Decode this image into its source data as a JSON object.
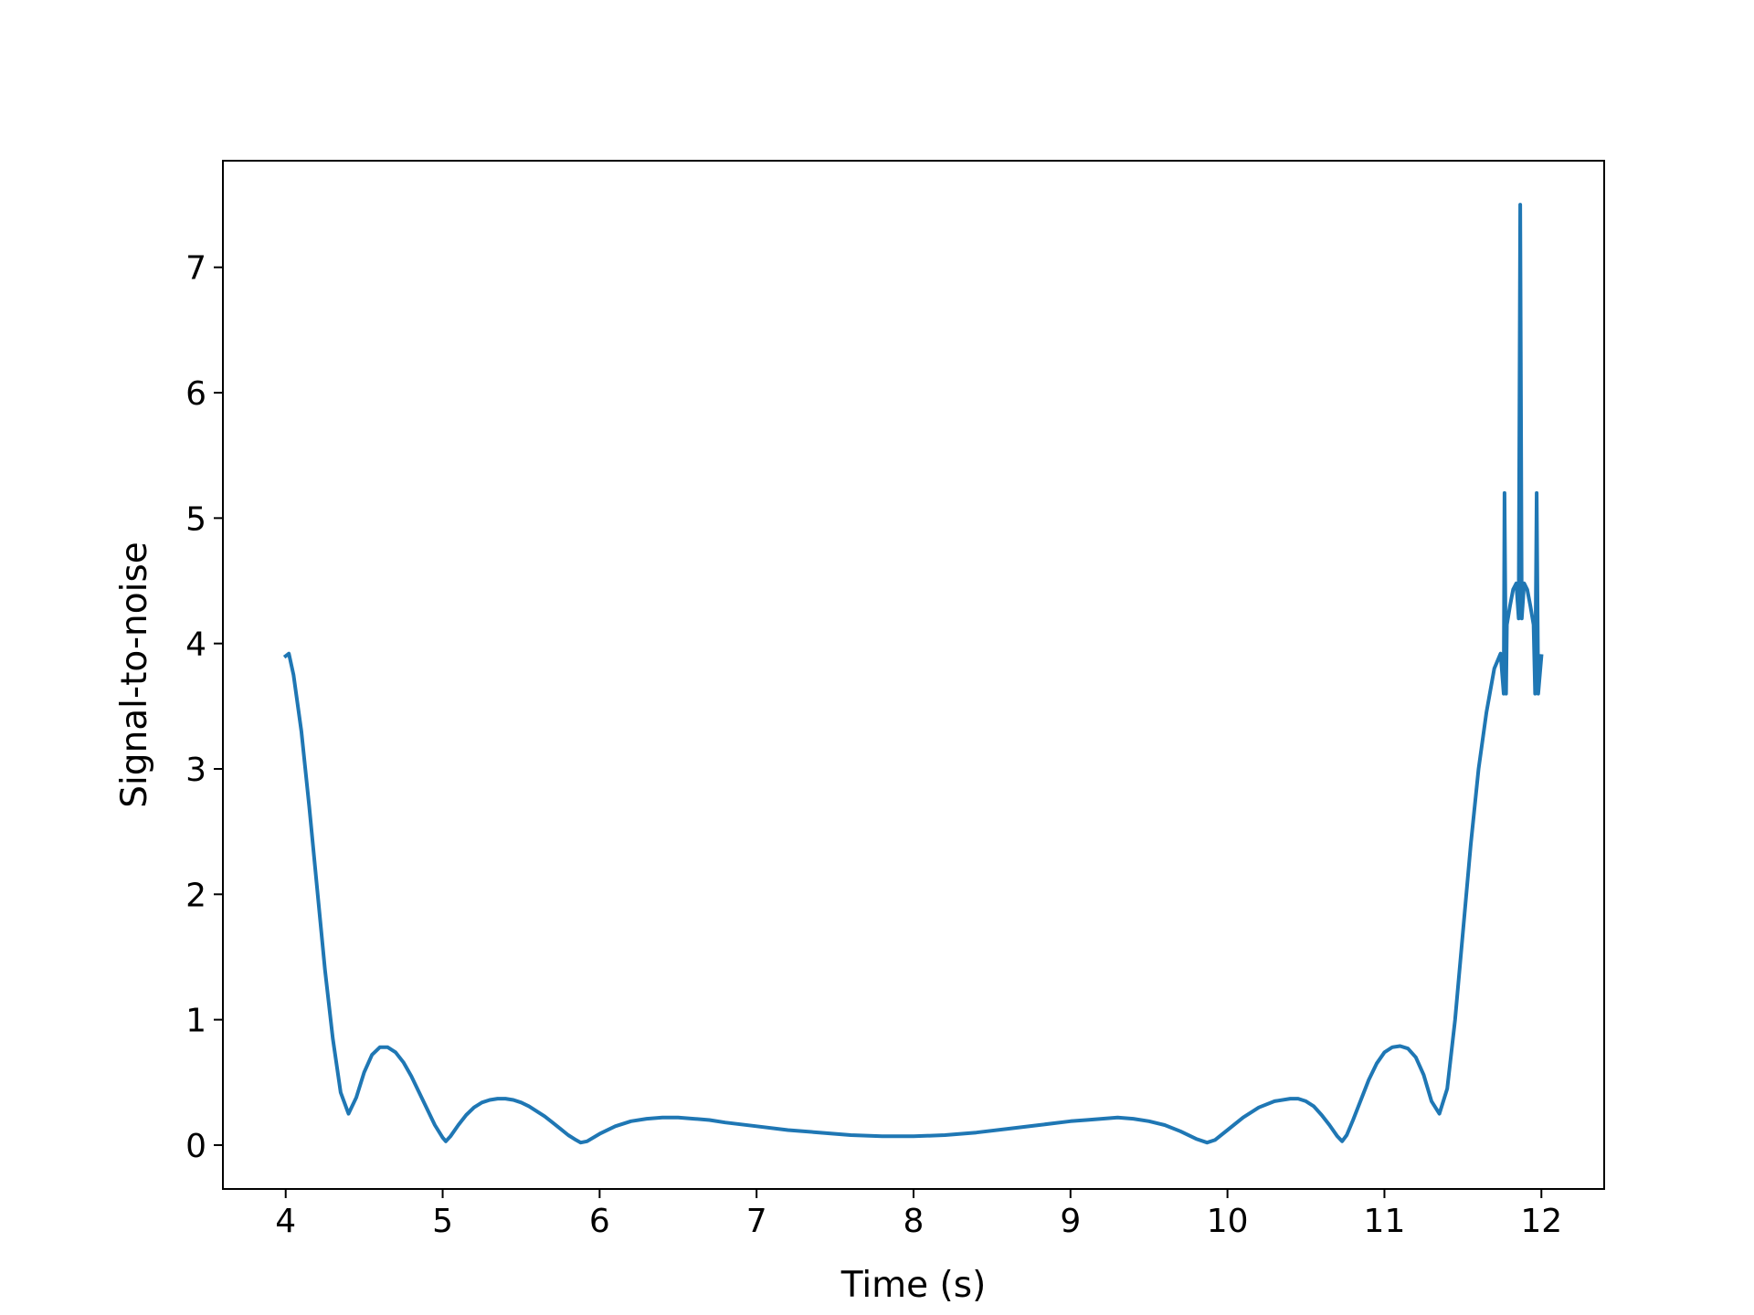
{
  "chart_data": {
    "type": "line",
    "title": "",
    "xlabel": "Time (s)",
    "ylabel": "Signal-to-noise",
    "xlim": [
      3.6,
      12.4
    ],
    "ylim": [
      -0.35,
      7.85
    ],
    "xticks": [
      4,
      5,
      6,
      7,
      8,
      9,
      10,
      11,
      12
    ],
    "yticks": [
      0,
      1,
      2,
      3,
      4,
      5,
      6,
      7
    ],
    "grid": false,
    "legend": "none",
    "series": [
      {
        "color": "#1f77b4",
        "points": [
          [
            4.0,
            3.9
          ],
          [
            4.02,
            3.92
          ],
          [
            4.05,
            3.75
          ],
          [
            4.1,
            3.3
          ],
          [
            4.15,
            2.7
          ],
          [
            4.2,
            2.05
          ],
          [
            4.25,
            1.4
          ],
          [
            4.3,
            0.85
          ],
          [
            4.35,
            0.42
          ],
          [
            4.4,
            0.25
          ],
          [
            4.45,
            0.38
          ],
          [
            4.5,
            0.58
          ],
          [
            4.55,
            0.72
          ],
          [
            4.6,
            0.78
          ],
          [
            4.65,
            0.78
          ],
          [
            4.7,
            0.74
          ],
          [
            4.75,
            0.66
          ],
          [
            4.8,
            0.55
          ],
          [
            4.85,
            0.42
          ],
          [
            4.9,
            0.29
          ],
          [
            4.95,
            0.16
          ],
          [
            5.0,
            0.06
          ],
          [
            5.02,
            0.03
          ],
          [
            5.05,
            0.07
          ],
          [
            5.1,
            0.16
          ],
          [
            5.15,
            0.24
          ],
          [
            5.2,
            0.3
          ],
          [
            5.25,
            0.34
          ],
          [
            5.3,
            0.36
          ],
          [
            5.35,
            0.37
          ],
          [
            5.4,
            0.37
          ],
          [
            5.45,
            0.36
          ],
          [
            5.5,
            0.34
          ],
          [
            5.55,
            0.31
          ],
          [
            5.6,
            0.27
          ],
          [
            5.65,
            0.23
          ],
          [
            5.7,
            0.18
          ],
          [
            5.75,
            0.13
          ],
          [
            5.8,
            0.08
          ],
          [
            5.85,
            0.04
          ],
          [
            5.88,
            0.02
          ],
          [
            5.92,
            0.03
          ],
          [
            6.0,
            0.09
          ],
          [
            6.1,
            0.15
          ],
          [
            6.2,
            0.19
          ],
          [
            6.3,
            0.21
          ],
          [
            6.4,
            0.22
          ],
          [
            6.5,
            0.22
          ],
          [
            6.6,
            0.21
          ],
          [
            6.7,
            0.2
          ],
          [
            6.8,
            0.18
          ],
          [
            7.0,
            0.15
          ],
          [
            7.2,
            0.12
          ],
          [
            7.4,
            0.1
          ],
          [
            7.6,
            0.08
          ],
          [
            7.8,
            0.07
          ],
          [
            8.0,
            0.07
          ],
          [
            8.2,
            0.08
          ],
          [
            8.4,
            0.1
          ],
          [
            8.6,
            0.13
          ],
          [
            8.8,
            0.16
          ],
          [
            9.0,
            0.19
          ],
          [
            9.1,
            0.2
          ],
          [
            9.2,
            0.21
          ],
          [
            9.3,
            0.22
          ],
          [
            9.4,
            0.21
          ],
          [
            9.5,
            0.19
          ],
          [
            9.6,
            0.16
          ],
          [
            9.7,
            0.11
          ],
          [
            9.8,
            0.05
          ],
          [
            9.87,
            0.02
          ],
          [
            9.92,
            0.04
          ],
          [
            10.0,
            0.12
          ],
          [
            10.1,
            0.22
          ],
          [
            10.2,
            0.3
          ],
          [
            10.3,
            0.35
          ],
          [
            10.4,
            0.37
          ],
          [
            10.45,
            0.37
          ],
          [
            10.5,
            0.35
          ],
          [
            10.55,
            0.31
          ],
          [
            10.6,
            0.24
          ],
          [
            10.65,
            0.16
          ],
          [
            10.7,
            0.07
          ],
          [
            10.73,
            0.03
          ],
          [
            10.76,
            0.08
          ],
          [
            10.8,
            0.2
          ],
          [
            10.85,
            0.36
          ],
          [
            10.9,
            0.52
          ],
          [
            10.95,
            0.65
          ],
          [
            11.0,
            0.74
          ],
          [
            11.05,
            0.78
          ],
          [
            11.1,
            0.79
          ],
          [
            11.15,
            0.77
          ],
          [
            11.2,
            0.7
          ],
          [
            11.25,
            0.56
          ],
          [
            11.3,
            0.35
          ],
          [
            11.35,
            0.25
          ],
          [
            11.4,
            0.45
          ],
          [
            11.45,
            1.0
          ],
          [
            11.5,
            1.7
          ],
          [
            11.55,
            2.4
          ],
          [
            11.6,
            3.0
          ],
          [
            11.65,
            3.45
          ],
          [
            11.7,
            3.8
          ],
          [
            11.74,
            3.92
          ],
          [
            11.76,
            3.6
          ],
          [
            11.765,
            5.2
          ],
          [
            11.775,
            3.6
          ],
          [
            11.78,
            4.15
          ],
          [
            11.8,
            4.3
          ],
          [
            11.82,
            4.43
          ],
          [
            11.84,
            4.48
          ],
          [
            11.855,
            4.2
          ],
          [
            11.865,
            7.5
          ],
          [
            11.875,
            4.2
          ],
          [
            11.89,
            4.48
          ],
          [
            11.91,
            4.43
          ],
          [
            11.93,
            4.3
          ],
          [
            11.95,
            4.15
          ],
          [
            11.96,
            3.6
          ],
          [
            11.97,
            5.2
          ],
          [
            11.98,
            3.6
          ],
          [
            12.0,
            3.9
          ]
        ]
      }
    ]
  }
}
